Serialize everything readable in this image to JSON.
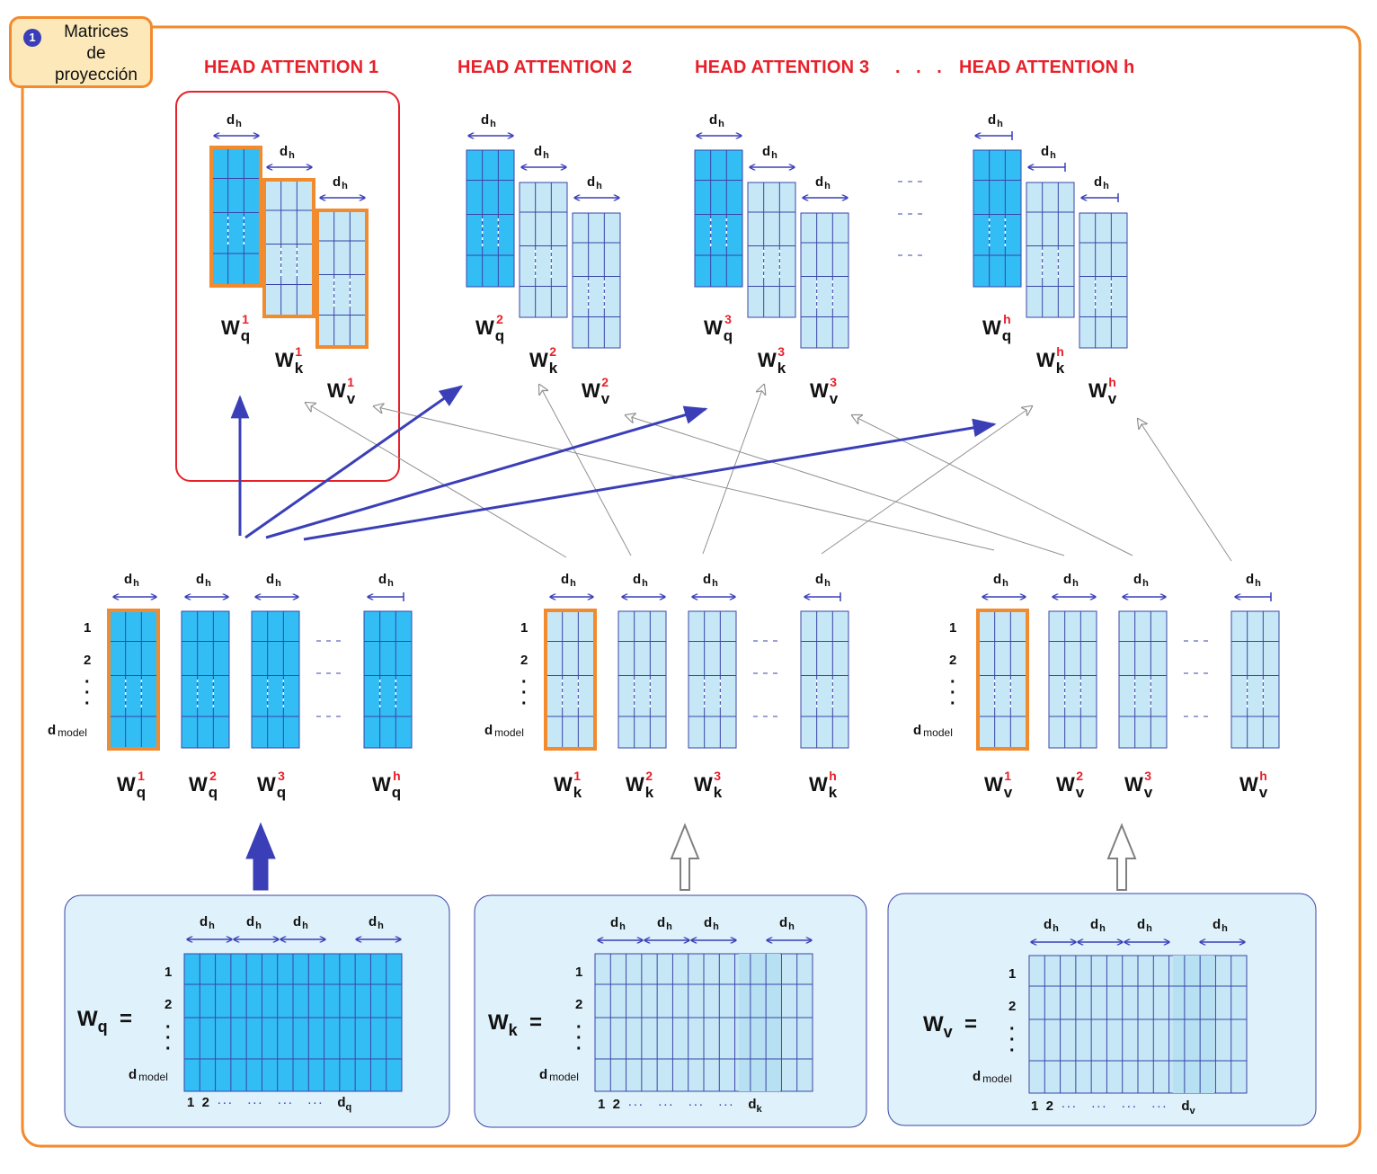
{
  "badge": {
    "number": "1",
    "text": "Matrices\nde\nproyección"
  },
  "heads": [
    "HEAD ATTENTION 1",
    "HEAD ATTENTION 2",
    "HEAD ATTENTION 3",
    "HEAD ATTENTION h"
  ],
  "heads_ellipsis": ". . .",
  "dh_label": {
    "base": "d",
    "sub": "h"
  },
  "row_labels": {
    "r1": "1",
    "r2": "2",
    "last_base": "d",
    "last_sub": "model"
  },
  "matrix_labels": {
    "base": "W",
    "q": "q",
    "k": "k",
    "v": "v",
    "heads": [
      "1",
      "2",
      "3",
      "h"
    ]
  },
  "full_matrices": [
    {
      "base": "W",
      "sub": "q",
      "equals": "=",
      "last_col": "d",
      "last_col_sub": "q"
    },
    {
      "base": "W",
      "sub": "k",
      "equals": "=",
      "last_col": "d",
      "last_col_sub": "k"
    },
    {
      "base": "W",
      "sub": "v",
      "equals": "=",
      "last_col": "d",
      "last_col_sub": "v"
    }
  ],
  "col_numbers": {
    "c1": "1",
    "c2": "2",
    "ellipsis": "···   ···   ···   ···"
  },
  "colors": {
    "orange": "#f28a2e",
    "red": "#e8202a",
    "blue_arrow": "#3a3fb8",
    "dark_blue_fill": "#33bdf5",
    "light_blue_fill": "#c6e8f6",
    "panel_fill": "#dff1fa",
    "grid_line": "#3a45a8",
    "gray_arrow": "#909090"
  }
}
